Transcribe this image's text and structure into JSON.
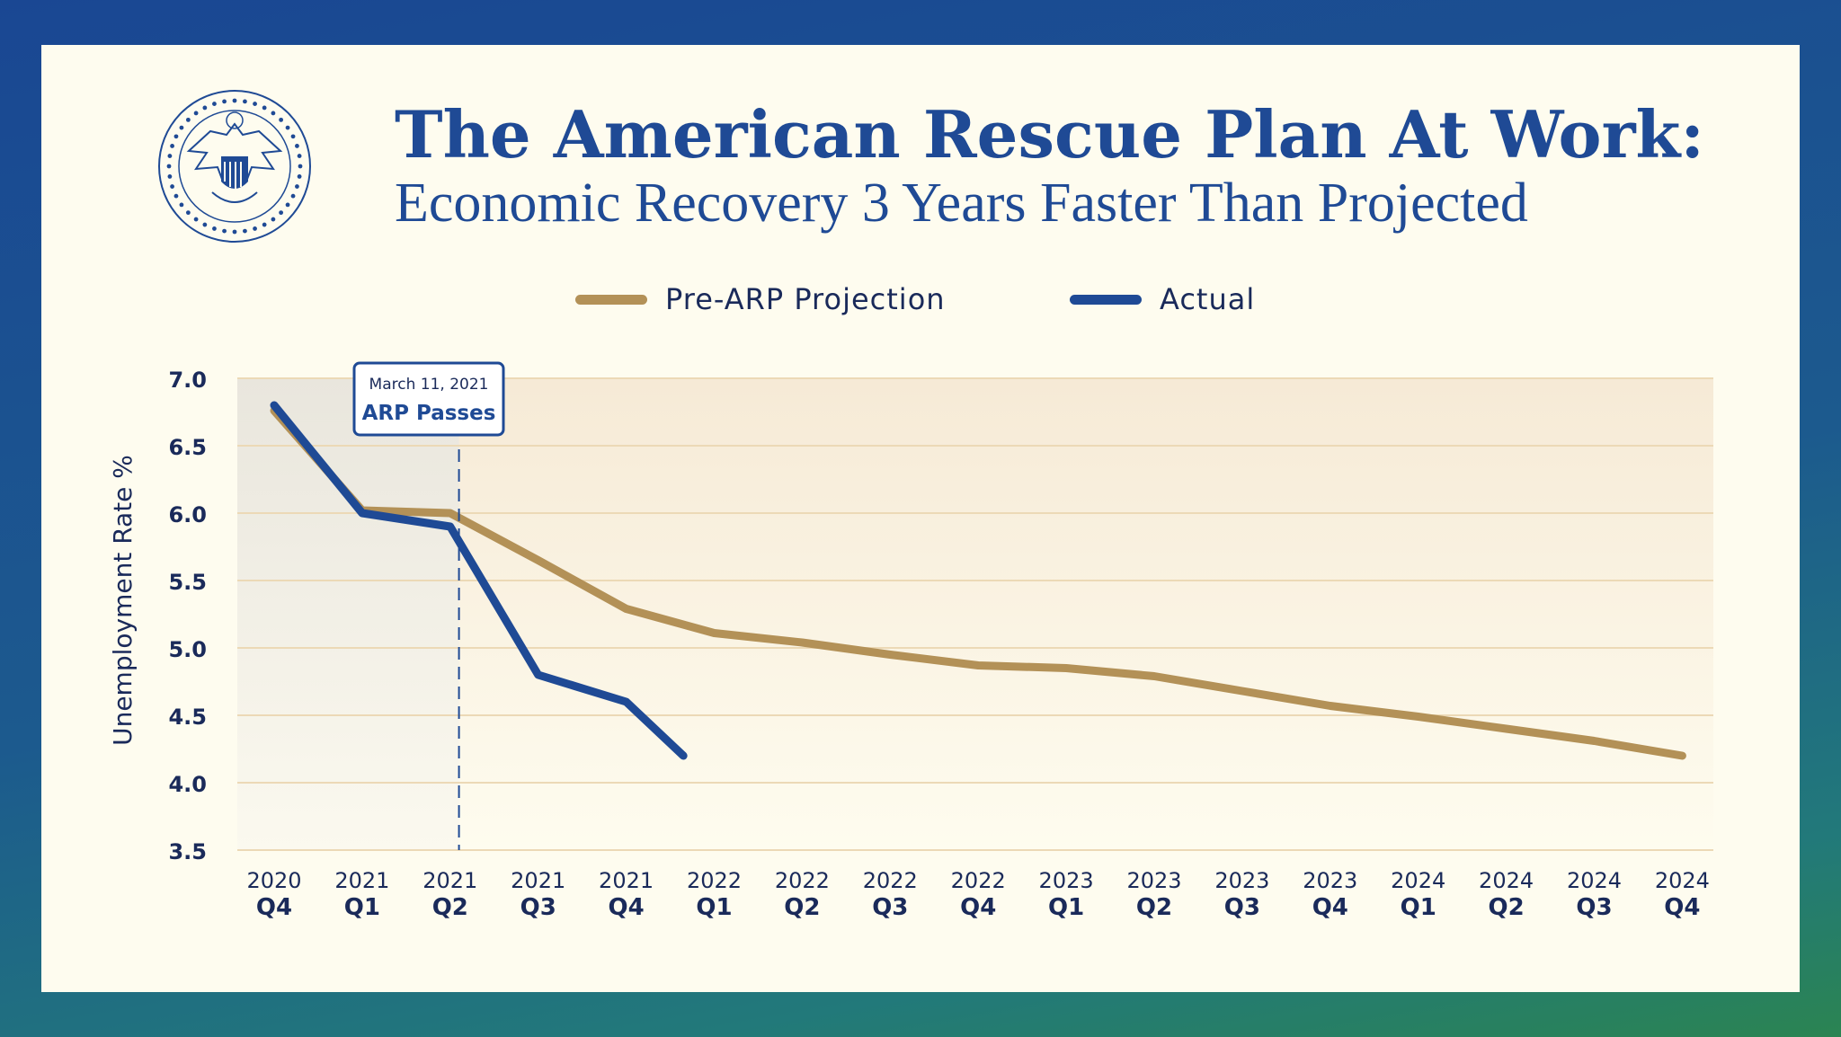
{
  "title": "The American Rescue Plan At Work:",
  "subtitle": "Economic Recovery 3 Years Faster Than Projected",
  "colors": {
    "projection": "#b39157",
    "actual": "#1f4a95",
    "text_dark": "#1a2a5a",
    "card": "#fefcef",
    "grid": "#ecd9b6"
  },
  "seal": {
    "icon": "presidential-seal-icon"
  },
  "annotation": {
    "date": "March 11, 2021",
    "label": "ARP Passes"
  },
  "chart_data": {
    "type": "line",
    "title": "The American Rescue Plan At Work:",
    "subtitle": "Economic Recovery 3 Years Faster Than Projected",
    "ylabel": "Unemployment Rate %",
    "xlabel": "",
    "ylim": [
      3.5,
      7.0
    ],
    "yticks": [
      "7.0",
      "6.5",
      "6.0",
      "5.5",
      "5.0",
      "4.5",
      "4.0",
      "3.5"
    ],
    "grid": "horizontal",
    "legend": "top-center",
    "categories": [
      {
        "year": "2020",
        "quarter": "Q4"
      },
      {
        "year": "2021",
        "quarter": "Q1"
      },
      {
        "year": "2021",
        "quarter": "Q2"
      },
      {
        "year": "2021",
        "quarter": "Q3"
      },
      {
        "year": "2021",
        "quarter": "Q4"
      },
      {
        "year": "2022",
        "quarter": "Q1"
      },
      {
        "year": "2022",
        "quarter": "Q2"
      },
      {
        "year": "2022",
        "quarter": "Q3"
      },
      {
        "year": "2022",
        "quarter": "Q4"
      },
      {
        "year": "2023",
        "quarter": "Q1"
      },
      {
        "year": "2023",
        "quarter": "Q2"
      },
      {
        "year": "2023",
        "quarter": "Q3"
      },
      {
        "year": "2023",
        "quarter": "Q4"
      },
      {
        "year": "2024",
        "quarter": "Q1"
      },
      {
        "year": "2024",
        "quarter": "Q2"
      },
      {
        "year": "2024",
        "quarter": "Q3"
      },
      {
        "year": "2024",
        "quarter": "Q4"
      }
    ],
    "series": [
      {
        "name": "Pre-ARP Projection",
        "color": "#b39157",
        "points": [
          [
            0,
            6.76
          ],
          [
            1,
            6.02
          ],
          [
            2,
            6.0
          ],
          [
            3,
            5.65
          ],
          [
            4,
            5.29
          ],
          [
            5,
            5.11
          ],
          [
            6,
            5.04
          ],
          [
            7,
            4.95
          ],
          [
            8,
            4.87
          ],
          [
            9,
            4.85
          ],
          [
            10,
            4.79
          ],
          [
            11,
            4.68
          ],
          [
            12,
            4.57
          ],
          [
            13,
            4.49
          ],
          [
            14,
            4.4
          ],
          [
            15,
            4.31
          ],
          [
            16,
            4.2
          ]
        ]
      },
      {
        "name": "Actual",
        "color": "#1f4a95",
        "points": [
          [
            0,
            6.8
          ],
          [
            1,
            6.0
          ],
          [
            2,
            5.9
          ],
          [
            3,
            4.8
          ],
          [
            4,
            4.6
          ],
          [
            4.65,
            4.2
          ]
        ]
      }
    ],
    "annotation_x": 2.1
  }
}
